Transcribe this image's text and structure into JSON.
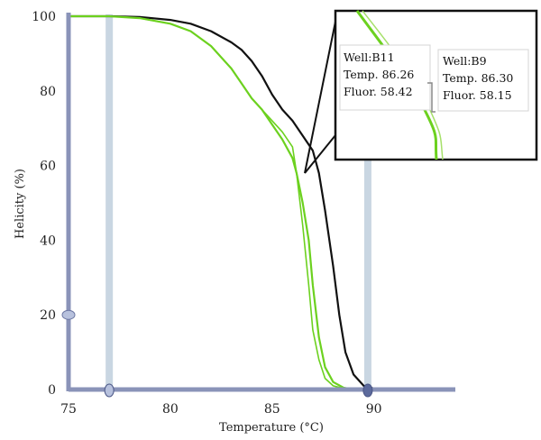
{
  "chart_data": {
    "type": "line",
    "xlabel": "Temperature (°C)",
    "ylabel": "Helicity (%)",
    "xlim": [
      75,
      94
    ],
    "ylim": [
      0,
      100
    ],
    "x_ticks": [
      "75",
      "80",
      "85",
      "90"
    ],
    "y_ticks": [
      "0",
      "20",
      "40",
      "60",
      "80",
      "100"
    ],
    "grid": false,
    "colors": {
      "black_series": "#111111",
      "green_series": "#6cd11f",
      "axis": "#8a93b8",
      "guide": "#c9d6e2"
    },
    "guides_x": [
      77,
      89.7
    ],
    "series": [
      {
        "color": "#111111",
        "x": [
          75,
          77,
          78.5,
          80,
          81,
          82,
          83,
          83.5,
          84,
          84.5,
          85,
          85.5,
          86,
          86.5,
          87,
          87.3,
          87.6,
          88,
          88.3,
          88.6,
          89,
          89.5,
          90,
          91,
          94
        ],
        "y": [
          100,
          100,
          99.8,
          99,
          98,
          96,
          93,
          91,
          88,
          84,
          79,
          75,
          72,
          68,
          64,
          58,
          48,
          33,
          20,
          10,
          4,
          1,
          0.3,
          0,
          0
        ]
      },
      {
        "color": "#6cd11f",
        "x": [
          75,
          77,
          78.5,
          80,
          81,
          82,
          83,
          83.5,
          84,
          84.5,
          85,
          85.5,
          86,
          86.2,
          86.5,
          86.8,
          87,
          87.3,
          87.6,
          88,
          88.5,
          89,
          94
        ],
        "y": [
          100,
          100,
          99.5,
          98,
          96,
          92,
          86,
          82,
          78,
          75,
          71,
          67,
          62,
          58,
          50,
          40,
          28,
          14,
          6,
          2,
          0.5,
          0,
          0
        ]
      },
      {
        "color": "#6cd11f",
        "x": [
          75,
          77,
          78.5,
          80,
          81,
          82,
          83,
          83.5,
          84,
          84.5,
          85,
          85.5,
          86,
          86.2,
          86.5,
          86.8,
          87,
          87.3,
          87.6,
          88,
          88.5,
          89,
          94
        ],
        "y": [
          100,
          100,
          99.5,
          98,
          96,
          92,
          86,
          82,
          78,
          75,
          72,
          69,
          65,
          58,
          44,
          28,
          16,
          8,
          3,
          1,
          0.3,
          0,
          0
        ]
      }
    ],
    "tooltips": [
      {
        "well": "Well:B11",
        "temp": "Temp. 86.26",
        "fluor": "Fluor. 58.42"
      },
      {
        "well": "Well:B9",
        "temp": "Temp. 86.30",
        "fluor": "Fluor. 58.15"
      }
    ]
  }
}
